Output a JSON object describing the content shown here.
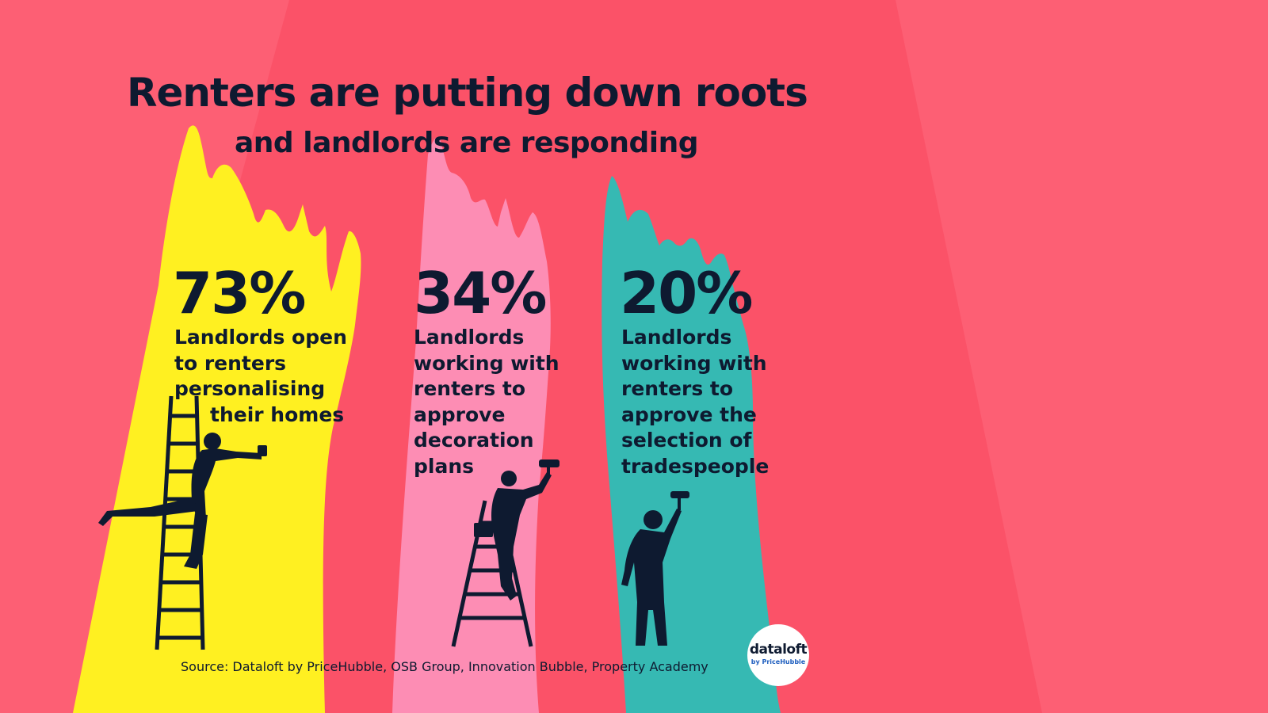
{
  "title": "Renters are putting down roots",
  "subtitle": "and landlords are responding",
  "stats": [
    {
      "value": "73%",
      "lines": [
        "Landlords open",
        "to renters",
        "personalising",
        "their homes"
      ],
      "color": "#fff021",
      "icon": "person-on-ladder-with-brush-icon"
    },
    {
      "value": "34%",
      "lines": [
        "Landlords",
        "working with",
        "renters to",
        "approve",
        "decoration",
        "plans"
      ],
      "color": "#fd8db4",
      "icon": "person-on-stepladder-with-roller-icon"
    },
    {
      "value": "20%",
      "lines": [
        "Landlords",
        "working with",
        "renters to",
        "approve the",
        "selection of",
        "tradespeople"
      ],
      "color": "#36b9b3",
      "icon": "person-with-paint-roller-icon"
    }
  ],
  "source": "Source: Dataloft by PriceHubble, OSB Group, Innovation Bubble, Property Academy",
  "logo": {
    "name": "dataloft",
    "sub": "by PriceHubble"
  },
  "colors": {
    "background": "#fd5f74",
    "background_band": "#fb5268",
    "text": "#0e1a30"
  }
}
